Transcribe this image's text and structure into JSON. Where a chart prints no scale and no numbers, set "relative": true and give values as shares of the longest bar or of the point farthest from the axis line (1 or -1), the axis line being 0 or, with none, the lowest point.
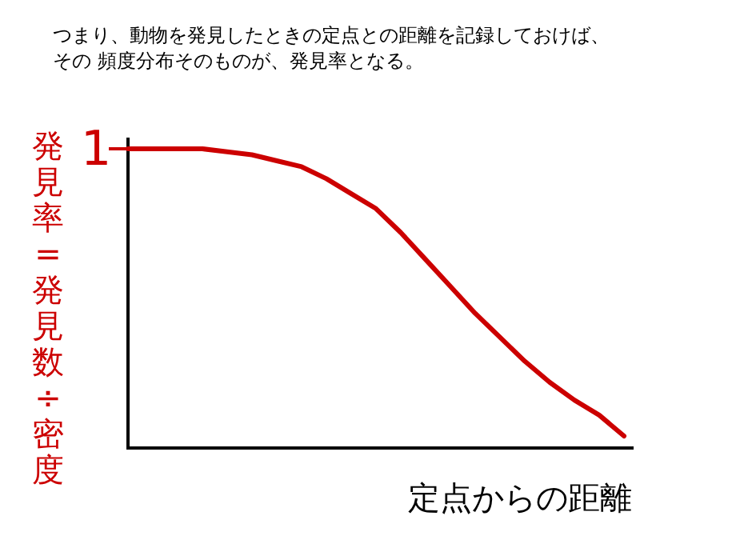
{
  "chart_data": {
    "type": "line",
    "title": "つまり、動物を発見したときの定点との距離を記録しておけば、",
    "subtitle": "その 頻度分布そのものが、発見率となる。",
    "xlabel": "定点からの距離",
    "ylabel": "発見率=発見数÷密度",
    "relative": true,
    "annotations": [
      "1"
    ],
    "categories": [
      null,
      null,
      null,
      null,
      null,
      null,
      null,
      null,
      null,
      null,
      null,
      null,
      null,
      null,
      null,
      null,
      null,
      null,
      null,
      null,
      null
    ],
    "series": [
      {
        "color": "#cc0000",
        "values": [
          1.0,
          1.0,
          1.0,
          1.0,
          0.99,
          0.98,
          0.96,
          0.94,
          0.9,
          0.85,
          0.8,
          0.72,
          0.63,
          0.54,
          0.45,
          0.37,
          0.29,
          0.22,
          0.16,
          0.11,
          0.04
        ]
      }
    ],
    "marker": "none",
    "line_style": "solid"
  }
}
